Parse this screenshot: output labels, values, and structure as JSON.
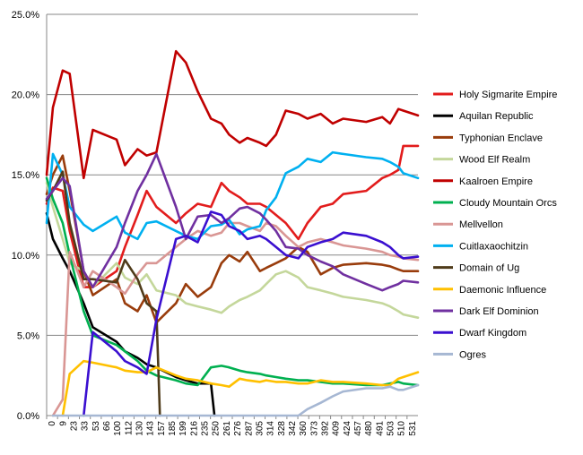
{
  "chart_data": {
    "type": "line",
    "title": "",
    "xlabel": "",
    "ylabel": "",
    "ylim": [
      0,
      25
    ],
    "grid": "horizontal",
    "legend": "right",
    "y_ticks": [
      "0.0%",
      "5.0%",
      "10.0%",
      "15.0%",
      "20.0%",
      "25.0%"
    ],
    "x_ticks": [
      "0",
      "9",
      "23",
      "33",
      "53",
      "66",
      "100",
      "112",
      "130",
      "143",
      "157",
      "185",
      "199",
      "216",
      "235",
      "250",
      "261",
      "276",
      "287",
      "305",
      "314",
      "328",
      "342",
      "360",
      "373",
      "392",
      "409",
      "424",
      "457",
      "480",
      "491",
      "503",
      "510",
      "531"
    ],
    "series": [
      {
        "name": "Holy Sigmarite Empire",
        "color": "#e21c1c",
        "x": [
          0,
          9,
          23,
          33,
          53,
          66,
          100,
          112,
          130,
          143,
          157,
          185,
          199,
          216,
          235,
          250,
          261,
          276,
          287,
          305,
          314,
          328,
          342,
          360,
          373,
          392,
          409,
          424,
          457,
          480,
          491,
          503,
          510,
          531
        ],
        "values": [
          13.2,
          14.2,
          14.0,
          11.5,
          8.0,
          8.0,
          9.0,
          10.5,
          12.5,
          14.0,
          13.0,
          12.0,
          12.6,
          13.2,
          13.0,
          14.5,
          14.0,
          13.6,
          13.2,
          13.2,
          13.0,
          12.5,
          12.0,
          11.0,
          12.0,
          13.0,
          13.2,
          13.8,
          14.0,
          14.8,
          15.0,
          15.3,
          16.8,
          16.8
        ]
      },
      {
        "name": "Aquilan Republic",
        "color": "#000000",
        "x": [
          0,
          9,
          23,
          33,
          53,
          66,
          100,
          112,
          130,
          143,
          157,
          185,
          199,
          216,
          235,
          240
        ],
        "values": [
          12.6,
          11.0,
          9.8,
          9.0,
          7.0,
          5.5,
          4.6,
          4.0,
          3.6,
          3.2,
          3.0,
          2.4,
          2.2,
          2.0,
          2.0,
          0.0
        ]
      },
      {
        "name": "Typhonian Enclave",
        "color": "#993c0c",
        "x": [
          0,
          9,
          23,
          33,
          53,
          66,
          100,
          112,
          130,
          143,
          157,
          185,
          199,
          216,
          235,
          250,
          261,
          276,
          287,
          305,
          314,
          328,
          342,
          360,
          373,
          392,
          409,
          424,
          457,
          480,
          491,
          503,
          510,
          531
        ],
        "values": [
          13.8,
          15.0,
          16.2,
          14.0,
          9.0,
          7.5,
          8.5,
          7.0,
          6.5,
          7.5,
          5.8,
          7.0,
          8.2,
          7.4,
          8.0,
          9.5,
          10.0,
          9.6,
          10.2,
          9.0,
          9.2,
          9.5,
          9.8,
          10.5,
          10.2,
          8.8,
          9.2,
          9.4,
          9.5,
          9.4,
          9.3,
          9.1,
          9.0,
          9.0
        ]
      },
      {
        "name": "Wood Elf Realm",
        "color": "#c4d79b",
        "x": [
          0,
          9,
          23,
          33,
          53,
          66,
          100,
          112,
          130,
          143,
          157,
          185,
          199,
          216,
          235,
          250,
          261,
          276,
          287,
          305,
          314,
          328,
          342,
          360,
          373,
          392,
          409,
          424,
          457,
          480,
          491,
          503,
          510,
          531
        ],
        "values": [
          14.5,
          13.0,
          11.0,
          9.5,
          9.0,
          8.0,
          9.5,
          8.6,
          8.2,
          8.8,
          7.8,
          7.5,
          7.0,
          6.8,
          6.6,
          6.4,
          6.8,
          7.2,
          7.4,
          7.8,
          8.2,
          8.8,
          9.0,
          8.6,
          8.0,
          7.8,
          7.6,
          7.4,
          7.2,
          7.0,
          6.8,
          6.5,
          6.3,
          6.1
        ]
      },
      {
        "name": "Kaalroen Empire",
        "color": "#c00000",
        "x": [
          0,
          9,
          23,
          33,
          53,
          66,
          100,
          112,
          130,
          143,
          157,
          185,
          199,
          216,
          235,
          250,
          261,
          276,
          287,
          305,
          314,
          328,
          342,
          360,
          373,
          392,
          409,
          424,
          457,
          480,
          491,
          503,
          510,
          531
        ],
        "values": [
          15.0,
          19.2,
          21.5,
          21.3,
          14.8,
          17.8,
          17.2,
          15.6,
          16.6,
          16.2,
          16.4,
          22.7,
          22.0,
          20.2,
          18.5,
          18.2,
          17.5,
          17.0,
          17.3,
          17.0,
          16.8,
          17.5,
          19.0,
          18.8,
          18.5,
          18.8,
          18.2,
          18.5,
          18.3,
          18.6,
          18.2,
          19.1,
          19.0,
          18.7
        ]
      },
      {
        "name": "Cloudy Mountain Orcs",
        "color": "#00b050",
        "x": [
          0,
          9,
          23,
          33,
          53,
          66,
          100,
          112,
          130,
          143,
          157,
          185,
          199,
          216,
          235,
          250,
          261,
          276,
          287,
          305,
          314,
          328,
          342,
          360,
          373,
          392,
          409,
          424,
          457,
          480,
          491,
          503,
          510,
          531
        ],
        "values": [
          14.8,
          13.5,
          12.0,
          10.0,
          6.5,
          5.0,
          4.4,
          4.0,
          3.4,
          2.8,
          2.5,
          2.2,
          2.0,
          1.9,
          3.0,
          3.1,
          3.0,
          2.8,
          2.7,
          2.6,
          2.5,
          2.4,
          2.3,
          2.2,
          2.2,
          2.1,
          2.0,
          2.0,
          1.9,
          1.9,
          2.0,
          2.1,
          2.0,
          1.9
        ]
      },
      {
        "name": "Mellvellon",
        "color": "#d99694",
        "x": [
          9,
          23,
          33,
          53,
          66,
          100,
          112,
          130,
          143,
          157,
          185,
          199,
          216,
          235,
          250,
          261,
          276,
          287,
          305,
          314,
          328,
          342,
          360,
          373,
          392,
          409,
          424,
          457,
          480,
          491,
          503,
          510,
          531
        ],
        "values": [
          0.0,
          1.0,
          10.2,
          8.0,
          9.0,
          8.0,
          7.6,
          8.8,
          9.5,
          9.5,
          10.5,
          11.0,
          11.5,
          11.2,
          11.4,
          12.0,
          12.0,
          11.8,
          11.5,
          12.0,
          11.8,
          11.2,
          10.5,
          10.8,
          11.0,
          10.8,
          10.6,
          10.4,
          10.2,
          10.0,
          9.9,
          9.8,
          9.7
        ]
      },
      {
        "name": "Cuitlaxaochitzin",
        "color": "#00b0f0",
        "x": [
          0,
          9,
          23,
          33,
          53,
          66,
          100,
          112,
          130,
          143,
          157,
          185,
          199,
          216,
          235,
          250,
          261,
          276,
          287,
          305,
          314,
          328,
          342,
          360,
          373,
          392,
          409,
          424,
          457,
          480,
          491,
          503,
          510,
          531
        ],
        "values": [
          12.0,
          16.3,
          15.0,
          13.0,
          11.9,
          11.5,
          12.4,
          11.4,
          11.0,
          12.0,
          12.1,
          11.5,
          11.2,
          11.0,
          11.8,
          11.9,
          12.2,
          11.3,
          11.6,
          11.8,
          12.8,
          13.6,
          15.1,
          15.5,
          16.0,
          15.8,
          16.4,
          16.3,
          16.1,
          16.0,
          15.8,
          15.5,
          15.1,
          14.8
        ]
      },
      {
        "name": "Domain of Ug",
        "color": "#4f3b1a",
        "x": [
          0,
          9,
          23,
          33,
          53,
          66,
          100,
          112,
          130,
          143,
          157,
          162
        ],
        "values": [
          13.4,
          14.0,
          15.2,
          12.0,
          8.5,
          8.5,
          8.3,
          9.7,
          8.5,
          7.0,
          6.5,
          0.0
        ]
      },
      {
        "name": "Daemonic Influence",
        "color": "#ffc000",
        "x": [
          23,
          33,
          53,
          66,
          100,
          112,
          130,
          143,
          157,
          185,
          199,
          216,
          235,
          250,
          261,
          276,
          287,
          305,
          314,
          328,
          342,
          360,
          373,
          392,
          409,
          424,
          457,
          480,
          491,
          503,
          510,
          531
        ],
        "values": [
          0.0,
          2.6,
          3.4,
          3.3,
          3.0,
          2.8,
          2.7,
          2.7,
          3.0,
          2.5,
          2.3,
          2.2,
          2.0,
          1.9,
          1.8,
          2.3,
          2.2,
          2.1,
          2.2,
          2.1,
          2.1,
          2.0,
          2.0,
          2.2,
          2.1,
          2.1,
          2.0,
          1.9,
          1.9,
          2.3,
          2.4,
          2.7
        ]
      },
      {
        "name": "Dark Elf Dominion",
        "color": "#7030a0",
        "x": [
          0,
          9,
          23,
          33,
          53,
          66,
          100,
          112,
          130,
          143,
          157,
          185,
          199,
          216,
          235,
          250,
          261,
          276,
          287,
          305,
          314,
          328,
          342,
          360,
          373,
          392,
          409,
          424,
          457,
          480,
          491,
          503,
          510,
          531
        ],
        "values": [
          13.5,
          14.0,
          14.8,
          14.3,
          9.0,
          8.0,
          10.5,
          12.0,
          14.0,
          15.0,
          16.3,
          13.0,
          11.0,
          12.4,
          12.5,
          12.0,
          12.3,
          12.9,
          13.0,
          12.6,
          12.2,
          11.5,
          10.5,
          10.4,
          10.0,
          9.6,
          9.3,
          8.8,
          8.2,
          7.8,
          8.0,
          8.2,
          8.4,
          8.3
        ]
      },
      {
        "name": "Dwarf Kingdom",
        "color": "#3a0fd0",
        "x": [
          53,
          66,
          100,
          112,
          130,
          143,
          157,
          185,
          199,
          216,
          235,
          250,
          261,
          276,
          287,
          305,
          314,
          328,
          342,
          360,
          373,
          392,
          409,
          424,
          457,
          480,
          491,
          503,
          510,
          531
        ],
        "values": [
          0.0,
          5.2,
          4.0,
          3.4,
          3.0,
          2.6,
          6.0,
          11.0,
          11.2,
          10.8,
          12.7,
          12.5,
          11.8,
          11.5,
          11.0,
          11.2,
          11.0,
          10.5,
          10.0,
          9.8,
          10.5,
          10.8,
          11.0,
          11.4,
          11.2,
          10.8,
          10.5,
          10.0,
          9.8,
          9.9
        ]
      },
      {
        "name": "Ogres",
        "color": "#a6b7d3",
        "x": [
          9,
          23,
          33,
          53,
          66,
          100,
          112,
          130,
          143,
          157,
          185,
          199,
          216,
          235,
          250,
          261,
          276,
          287,
          305,
          314,
          328,
          342,
          360,
          373,
          392,
          409,
          424,
          457,
          480,
          491,
          503,
          510,
          531
        ],
        "values": [
          0.0,
          0,
          0,
          0,
          0,
          0,
          0,
          0,
          0,
          0,
          0,
          0,
          0,
          0,
          0,
          0,
          0,
          0,
          0,
          0,
          0,
          0,
          0.0,
          0.4,
          0.8,
          1.2,
          1.5,
          1.7,
          1.7,
          1.8,
          1.6,
          1.6,
          1.9
        ]
      }
    ]
  }
}
